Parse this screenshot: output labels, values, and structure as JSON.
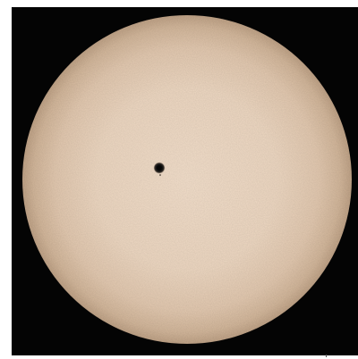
{
  "image": {
    "subject": "solar-disk",
    "background_color": "#040404",
    "frame_color": "#ffffff",
    "disk_center_color": "#f1dcc7",
    "disk_limb_color": "#c9ae93",
    "sunspot_umbra_color": "#050505",
    "sunspot_penumbra_color": "#2b2622"
  }
}
